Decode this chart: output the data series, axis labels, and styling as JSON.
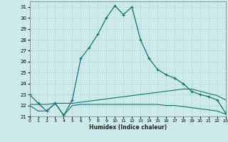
{
  "xlabel": "Humidex (Indice chaleur)",
  "background_color": "#cceaea",
  "grid_color": "#aacccc",
  "line_color": "#1a7070",
  "xlim": [
    0,
    23
  ],
  "ylim": [
    21,
    31.5
  ],
  "xticks": [
    0,
    1,
    2,
    3,
    4,
    5,
    6,
    7,
    8,
    9,
    10,
    11,
    12,
    13,
    14,
    15,
    16,
    17,
    18,
    19,
    20,
    21,
    22,
    23
  ],
  "yticks": [
    21,
    22,
    23,
    24,
    25,
    26,
    27,
    28,
    29,
    30,
    31
  ],
  "line1_x": [
    0,
    1,
    2,
    3,
    4,
    5,
    6,
    7,
    8,
    9,
    10,
    11,
    12,
    13,
    14,
    15,
    16,
    17,
    18,
    19,
    20,
    21,
    22,
    23
  ],
  "line1_y": [
    23.0,
    22.2,
    21.5,
    22.2,
    21.1,
    22.5,
    26.3,
    27.3,
    28.5,
    30.0,
    31.1,
    30.3,
    31.0,
    28.0,
    26.3,
    25.3,
    24.8,
    24.5,
    24.0,
    23.3,
    23.0,
    22.8,
    22.5,
    21.3
  ],
  "line2_x": [
    0,
    1,
    2,
    3,
    4,
    5,
    6,
    7,
    8,
    9,
    10,
    11,
    12,
    13,
    14,
    15,
    16,
    17,
    18,
    19,
    20,
    21,
    22,
    23
  ],
  "line2_y": [
    22.1,
    22.1,
    22.1,
    22.2,
    22.2,
    22.2,
    22.3,
    22.4,
    22.5,
    22.6,
    22.7,
    22.8,
    22.9,
    23.0,
    23.1,
    23.2,
    23.3,
    23.4,
    23.5,
    23.5,
    23.3,
    23.1,
    22.9,
    22.5
  ],
  "line3_x": [
    0,
    1,
    2,
    3,
    4,
    5,
    6,
    7,
    8,
    9,
    10,
    11,
    12,
    13,
    14,
    15,
    16,
    17,
    18,
    19,
    20,
    21,
    22,
    23
  ],
  "line3_y": [
    22.0,
    21.5,
    21.5,
    22.2,
    21.1,
    22.0,
    22.1,
    22.1,
    22.1,
    22.1,
    22.1,
    22.1,
    22.1,
    22.1,
    22.1,
    22.1,
    22.0,
    22.0,
    21.9,
    21.8,
    21.7,
    21.6,
    21.5,
    21.2
  ]
}
